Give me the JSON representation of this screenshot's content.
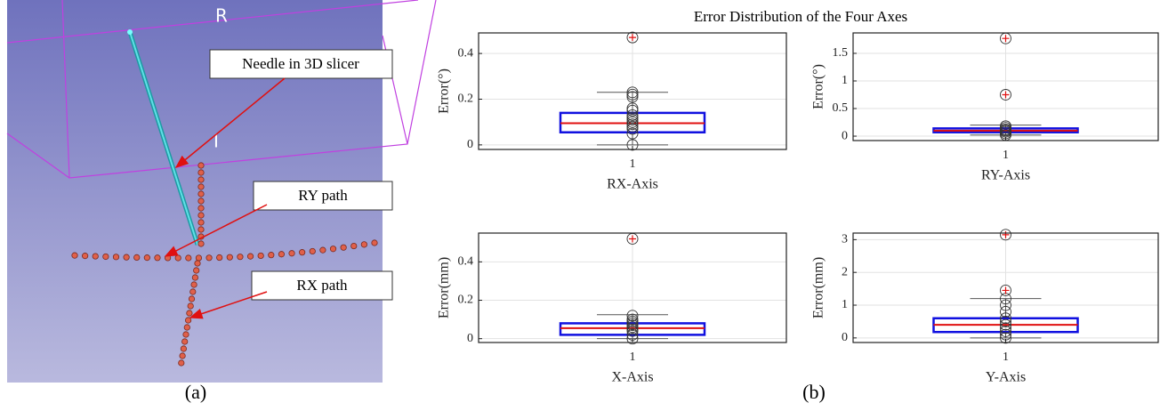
{
  "figure": {
    "title": "Error Distribution of the Four Axes",
    "panel_a": "(a)",
    "panel_b": "(b)"
  },
  "scene": {
    "axis_labels": [
      "R",
      "I"
    ],
    "callouts": [
      "Needle in 3D slicer",
      "RY path",
      "RX path"
    ]
  },
  "chart_data": [
    {
      "type": "box",
      "categories": [
        "1"
      ],
      "xlabel": "RX-Axis",
      "ylabel": "Error(°)",
      "ylim": [
        -0.02,
        0.49
      ],
      "yticks": [
        0,
        0.2,
        0.4
      ],
      "grid": true,
      "q1": 0.055,
      "median": 0.095,
      "q3": 0.14,
      "whisker_low": 0,
      "whisker_high": 0.23,
      "outliers": [
        0.47
      ],
      "points": [
        0,
        0.05,
        0.07,
        0.08,
        0.09,
        0.1,
        0.11,
        0.12,
        0.13,
        0.15,
        0.16,
        0.21,
        0.22,
        0.23,
        0.47
      ]
    },
    {
      "type": "box",
      "categories": [
        "1"
      ],
      "xlabel": "RY-Axis",
      "ylabel": "Error(°)",
      "ylim": [
        -0.08,
        1.87
      ],
      "yticks": [
        0,
        0.5,
        1,
        1.5
      ],
      "grid": true,
      "q1": 0.07,
      "median": 0.1,
      "q3": 0.14,
      "whisker_low": 0.02,
      "whisker_high": 0.2,
      "outliers": [
        0.75,
        1.77
      ],
      "points": [
        0.02,
        0.05,
        0.08,
        0.1,
        0.12,
        0.15,
        0.18,
        0.75,
        1.77
      ]
    },
    {
      "type": "box",
      "categories": [
        "1"
      ],
      "xlabel": "X-Axis",
      "ylabel": "Error(mm)",
      "ylim": [
        -0.02,
        0.55
      ],
      "yticks": [
        0,
        0.2,
        0.4
      ],
      "grid": true,
      "q1": 0.02,
      "median": 0.055,
      "q3": 0.08,
      "whisker_low": 0,
      "whisker_high": 0.125,
      "outliers": [
        0.52
      ],
      "points": [
        0,
        0.02,
        0.04,
        0.05,
        0.06,
        0.07,
        0.08,
        0.09,
        0.1,
        0.12,
        0.52
      ]
    },
    {
      "type": "box",
      "categories": [
        "1"
      ],
      "xlabel": "Y-Axis",
      "ylabel": "Error(mm)",
      "ylim": [
        -0.14,
        3.2
      ],
      "yticks": [
        0,
        1,
        2,
        3
      ],
      "grid": true,
      "q1": 0.18,
      "median": 0.4,
      "q3": 0.6,
      "whisker_low": 0,
      "whisker_high": 1.2,
      "outliers": [
        1.45,
        3.15
      ],
      "points": [
        0,
        0.1,
        0.2,
        0.3,
        0.4,
        0.5,
        0.6,
        0.8,
        1,
        1.2,
        1.45,
        3.15
      ]
    }
  ]
}
